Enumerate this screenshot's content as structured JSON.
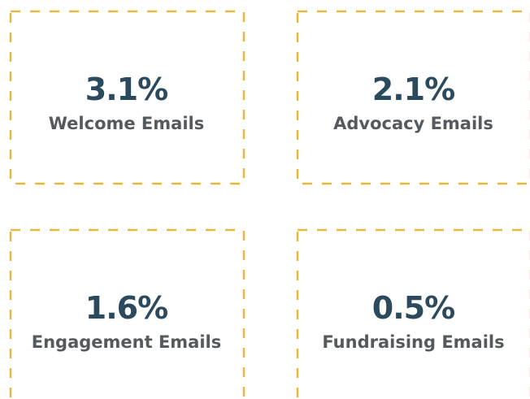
{
  "cards": [
    {
      "value": "3.1%",
      "label": "Welcome Emails"
    },
    {
      "value": "2.1%",
      "label": "Advocacy Emails"
    },
    {
      "value": "1.6%",
      "label": "Engagement Emails"
    },
    {
      "value": "0.5%",
      "label": "Fundraising Emails"
    }
  ]
}
